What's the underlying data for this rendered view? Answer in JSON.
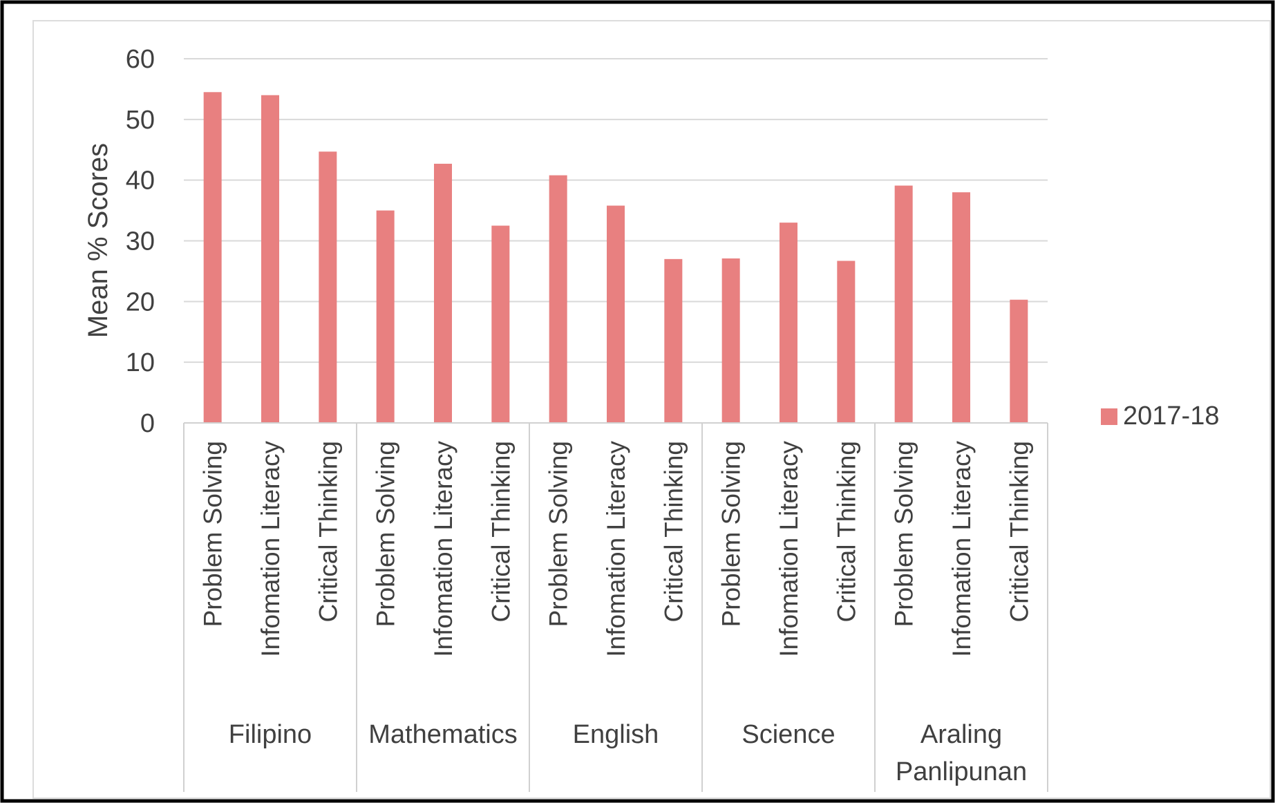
{
  "chart_data": {
    "type": "bar",
    "ylabel": "Mean % Scores",
    "xlabel": "",
    "title": "",
    "ylim": [
      0,
      60
    ],
    "yticks": [
      0,
      10,
      20,
      30,
      40,
      50,
      60
    ],
    "grid": true,
    "legend_position": "right",
    "groups": [
      {
        "label": [
          "Filipino"
        ],
        "categories": [
          "Problem Solving",
          "Infomation Literacy",
          "Critical Thinking"
        ]
      },
      {
        "label": [
          "Mathematics"
        ],
        "categories": [
          "Problem Solving",
          "Infomation Literacy",
          "Critical Thinking"
        ]
      },
      {
        "label": [
          "English"
        ],
        "categories": [
          "Problem Solving",
          "Infomation Literacy",
          "Critical Thinking"
        ]
      },
      {
        "label": [
          "Science"
        ],
        "categories": [
          "Problem Solving",
          "Infomation Literacy",
          "Critical Thinking"
        ]
      },
      {
        "label": [
          "Araling",
          "Panlipunan"
        ],
        "categories": [
          "Problem Solving",
          "Infomation Literacy",
          "Critical Thinking"
        ]
      }
    ],
    "series": [
      {
        "name": "2017-18",
        "color": "#E88080",
        "values": [
          54.5,
          54.0,
          44.7,
          35.0,
          42.7,
          32.5,
          40.8,
          35.8,
          27.0,
          27.1,
          33.0,
          26.7,
          39.1,
          38.0,
          20.3
        ]
      }
    ]
  }
}
